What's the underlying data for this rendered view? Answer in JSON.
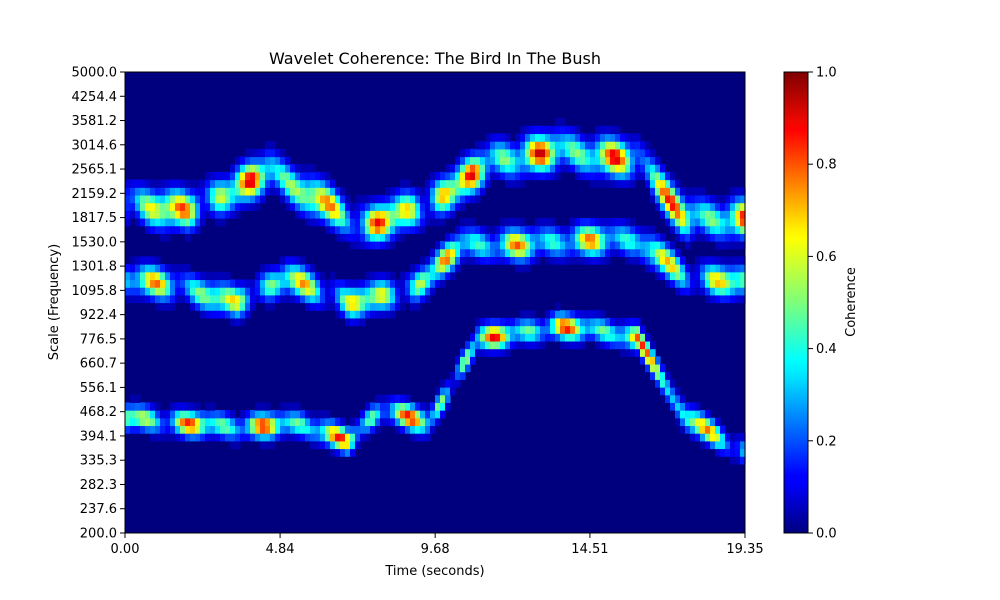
{
  "chart_data": {
    "type": "heatmap",
    "title": "Wavelet Coherence: The Bird In The Bush",
    "xlabel": "Time (seconds)",
    "ylabel": "Scale (Frequency)",
    "xlim": [
      0.0,
      19.35
    ],
    "ylim": [
      200.0,
      5000.0
    ],
    "yscale": "log",
    "x_ticks": [
      "0.00",
      "4.84",
      "9.68",
      "14.51",
      "19.35"
    ],
    "x_tick_values": [
      0.0,
      4.84,
      9.68,
      14.51,
      19.35
    ],
    "y_ticks": [
      "200.0",
      "237.6",
      "282.3",
      "335.3",
      "394.1",
      "468.2",
      "556.1",
      "660.7",
      "776.5",
      "922.4",
      "1095.8",
      "1301.8",
      "1530.0",
      "1817.5",
      "2159.2",
      "2565.1",
      "3014.6",
      "3581.2",
      "4254.4",
      "5000.0"
    ],
    "colormap": "jet",
    "colorbar": {
      "label": "Coherence",
      "range": [
        0.0,
        1.0
      ],
      "ticks": [
        "0.0",
        "0.2",
        "0.4",
        "0.6",
        "0.8",
        "1.0"
      ],
      "tick_values": [
        0.0,
        0.2,
        0.4,
        0.6,
        0.8,
        1.0
      ]
    },
    "grid": false,
    "bands": [
      {
        "name": "upper",
        "t": [
          0,
          2.0,
          4.5,
          7.5,
          9.5,
          11.5,
          13.5,
          16.0,
          17.5,
          19.35
        ],
        "scale": [
          2000,
          1900,
          2500,
          1700,
          2000,
          2700,
          2900,
          2700,
          1800,
          1800
        ],
        "width": 0.12,
        "strength": 0.95
      },
      {
        "name": "middle",
        "t": [
          0,
          2.0,
          3.5,
          5.0,
          7.0,
          9.0,
          10.5,
          12.5,
          14.0,
          16.0,
          17.5,
          19.35
        ],
        "scale": [
          1200,
          1100,
          1000,
          1200,
          1000,
          1100,
          1500,
          1500,
          1550,
          1550,
          1200,
          1150
        ],
        "width": 0.1,
        "strength": 0.8
      },
      {
        "name": "lower",
        "t": [
          0,
          2.0,
          3.5,
          5.5,
          7.0,
          8.0,
          9.5,
          11.0,
          12.0,
          13.5,
          15.0,
          16.0,
          17.5,
          19.35
        ],
        "scale": [
          450,
          430,
          420,
          430,
          380,
          480,
          430,
          780,
          800,
          850,
          820,
          780,
          450,
          350
        ],
        "width": 0.08,
        "strength": 0.9
      }
    ]
  }
}
